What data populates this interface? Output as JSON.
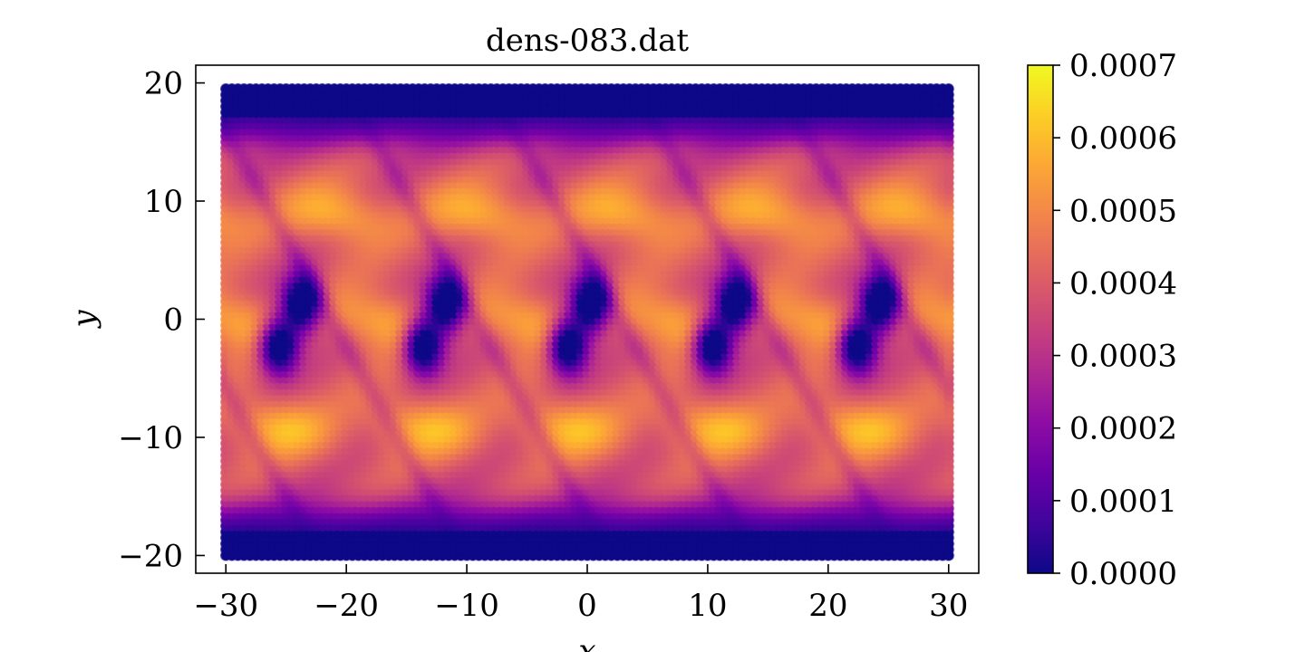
{
  "chart_data": {
    "type": "heatmap",
    "title": "dens-083.dat",
    "xlabel": "x",
    "ylabel": "y",
    "xlim": [
      -32.5,
      32.5
    ],
    "ylim": [
      -21.5,
      21.5
    ],
    "data_extent": {
      "x": [
        -30,
        30
      ],
      "y": [
        -20,
        19.5
      ]
    },
    "x_ticks": [
      -30,
      -20,
      -10,
      0,
      10,
      20,
      30
    ],
    "x_tick_labels": [
      "−30",
      "−20",
      "−10",
      "0",
      "10",
      "20",
      "30"
    ],
    "y_ticks": [
      -20,
      -10,
      0,
      10,
      20
    ],
    "y_tick_labels": [
      "−20",
      "−10",
      "0",
      "10",
      "20"
    ],
    "colormap": "plasma",
    "colorbar": {
      "range": [
        0,
        0.0007
      ],
      "ticks": [
        0,
        0.0001,
        0.0002,
        0.0003,
        0.0004,
        0.0005,
        0.0006,
        0.0007
      ],
      "tick_labels": [
        "0.0000",
        "0.0001",
        "0.0002",
        "0.0003",
        "0.0004",
        "0.0005",
        "0.0006",
        "0.0007"
      ]
    },
    "pattern": {
      "period_x": 12,
      "density_low_centers": [
        {
          "x": -25.5,
          "y": -2.0,
          "value": 3e-05
        },
        {
          "x": -23.5,
          "y": 1.5,
          "value": 3e-05
        },
        {
          "x": -13.5,
          "y": -2.0,
          "value": 3e-05
        },
        {
          "x": -11.5,
          "y": 1.5,
          "value": 3e-05
        },
        {
          "x": -1.5,
          "y": -2.0,
          "value": 3e-05
        },
        {
          "x": 0.5,
          "y": 1.5,
          "value": 3e-05
        },
        {
          "x": 10.5,
          "y": -2.0,
          "value": 3e-05
        },
        {
          "x": 12.5,
          "y": 1.5,
          "value": 3e-05
        },
        {
          "x": 22.5,
          "y": -2.0,
          "value": 3e-05
        },
        {
          "x": 24.5,
          "y": 1.5,
          "value": 3e-05
        }
      ],
      "density_high_centers_y": [
        9,
        0,
        -9
      ],
      "edge_value": 0.0,
      "edge_bands": [
        {
          "y": [
            15.5,
            19.5
          ]
        },
        {
          "y": [
            -20,
            -16
          ]
        }
      ],
      "peak_value": 0.0007
    },
    "grid": false,
    "legend": "none"
  }
}
